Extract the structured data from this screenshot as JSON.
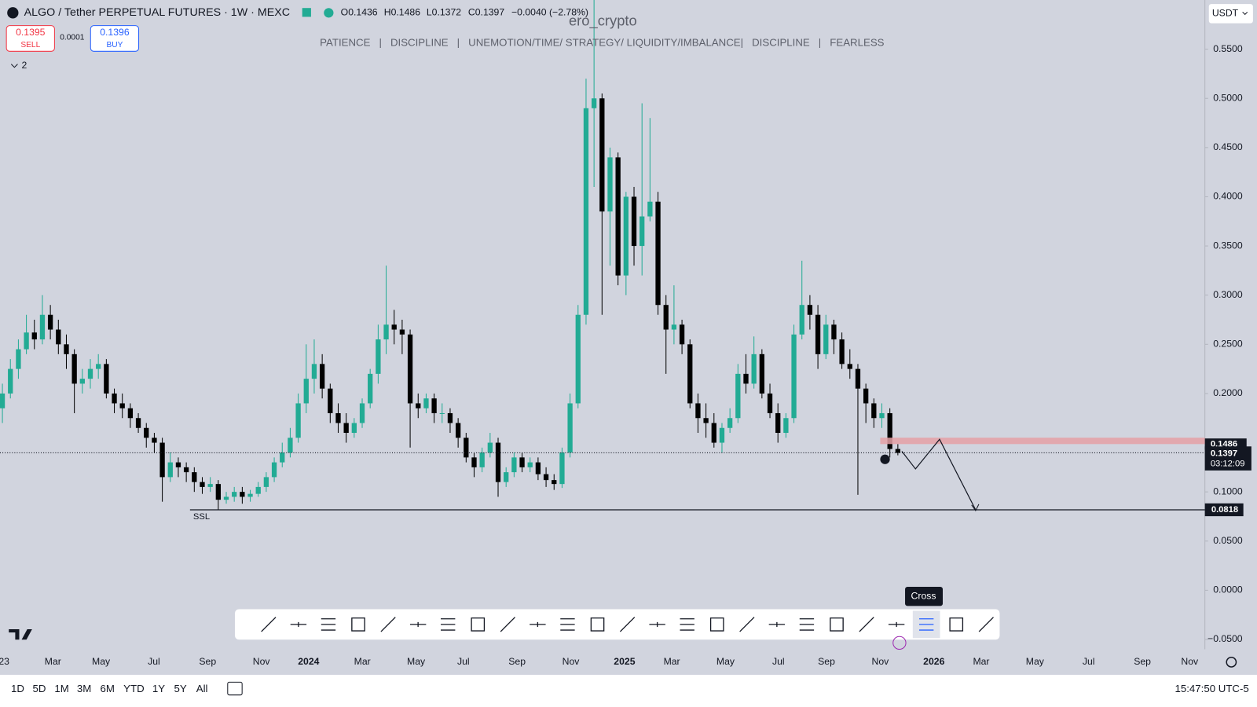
{
  "header": {
    "symbol": "ALGO / Tether PERPETUAL FUTURES · 1W · MEXC",
    "open": "O0.1436",
    "high": "H0.1486",
    "low": "L0.1372",
    "close": "C0.1397",
    "change": "−0.0040 (−2.78%)",
    "sell_price": "0.1395",
    "sell": "SELL",
    "spread": "0.0001",
    "buy_price": "0.1396",
    "buy": "BUY",
    "indicators": "2",
    "watermark": "ero_crypto",
    "motto": "PATIENCE   |   DISCIPLINE   |   UNEMOTION/TIME/ STRATEGY/ LIQUIDITY/IMBALANCE|   DISCIPLINE   |   FEARLESS",
    "currency": "USDT"
  },
  "chart_data": {
    "type": "candlestick",
    "open": [
      0.185,
      0.2,
      0.225,
      0.245,
      0.262,
      0.255,
      0.28,
      0.265,
      0.25,
      0.24,
      0.21,
      0.215,
      0.225,
      0.23,
      0.2,
      0.19,
      0.185,
      0.175,
      0.165,
      0.155,
      0.15,
      0.115,
      0.13,
      0.125,
      0.12,
      0.11,
      0.105,
      0.108,
      0.092,
      0.095,
      0.1,
      0.095,
      0.098,
      0.105,
      0.115,
      0.13,
      0.14,
      0.155,
      0.19,
      0.215,
      0.23,
      0.205,
      0.18,
      0.17,
      0.16,
      0.17,
      0.19,
      0.22,
      0.255,
      0.27,
      0.265,
      0.26,
      0.19,
      0.185,
      0.195,
      0.18,
      0.18,
      0.17,
      0.155,
      0.135,
      0.125,
      0.14,
      0.15,
      0.11,
      0.12,
      0.135,
      0.125,
      0.13,
      0.118,
      0.112,
      0.108,
      0.14,
      0.19,
      0.28,
      0.49,
      0.5,
      0.385,
      0.44,
      0.32,
      0.4,
      0.35,
      0.38,
      0.395,
      0.29,
      0.265,
      0.27,
      0.25,
      0.19,
      0.175,
      0.17,
      0.15,
      0.165,
      0.175,
      0.22,
      0.21,
      0.24,
      0.2,
      0.18,
      0.16,
      0.175,
      0.26,
      0.29,
      0.28,
      0.24,
      0.27,
      0.255,
      0.23,
      0.225,
      0.205,
      0.19,
      0.175,
      0.18,
      0.1436
    ],
    "high": [
      0.21,
      0.235,
      0.255,
      0.28,
      0.275,
      0.3,
      0.29,
      0.275,
      0.26,
      0.245,
      0.225,
      0.235,
      0.24,
      0.235,
      0.205,
      0.2,
      0.19,
      0.18,
      0.17,
      0.16,
      0.155,
      0.14,
      0.135,
      0.13,
      0.125,
      0.115,
      0.115,
      0.112,
      0.1,
      0.105,
      0.105,
      0.102,
      0.11,
      0.12,
      0.135,
      0.15,
      0.165,
      0.2,
      0.25,
      0.255,
      0.24,
      0.21,
      0.19,
      0.18,
      0.175,
      0.195,
      0.225,
      0.27,
      0.33,
      0.285,
      0.275,
      0.265,
      0.2,
      0.2,
      0.2,
      0.19,
      0.185,
      0.175,
      0.16,
      0.14,
      0.145,
      0.16,
      0.155,
      0.125,
      0.14,
      0.14,
      0.135,
      0.135,
      0.125,
      0.118,
      0.145,
      0.2,
      0.29,
      0.52,
      0.6,
      0.505,
      0.45,
      0.445,
      0.405,
      0.41,
      0.495,
      0.48,
      0.405,
      0.3,
      0.31,
      0.275,
      0.255,
      0.2,
      0.19,
      0.18,
      0.17,
      0.185,
      0.23,
      0.24,
      0.258,
      0.245,
      0.21,
      0.19,
      0.18,
      0.27,
      0.335,
      0.3,
      0.29,
      0.28,
      0.275,
      0.262,
      0.245,
      0.23,
      0.21,
      0.195,
      0.19,
      0.185,
      0.1486
    ],
    "low": [
      0.17,
      0.195,
      0.215,
      0.24,
      0.245,
      0.25,
      0.255,
      0.24,
      0.225,
      0.18,
      0.2,
      0.205,
      0.215,
      0.195,
      0.18,
      0.175,
      0.165,
      0.16,
      0.145,
      0.14,
      0.09,
      0.11,
      0.115,
      0.11,
      0.1,
      0.098,
      0.1,
      0.0818,
      0.088,
      0.09,
      0.088,
      0.09,
      0.095,
      0.1,
      0.11,
      0.125,
      0.135,
      0.15,
      0.18,
      0.2,
      0.195,
      0.17,
      0.16,
      0.15,
      0.155,
      0.165,
      0.185,
      0.21,
      0.24,
      0.25,
      0.24,
      0.145,
      0.175,
      0.18,
      0.17,
      0.17,
      0.16,
      0.145,
      0.13,
      0.115,
      0.12,
      0.135,
      0.095,
      0.105,
      0.115,
      0.12,
      0.12,
      0.112,
      0.105,
      0.102,
      0.104,
      0.135,
      0.185,
      0.27,
      0.41,
      0.28,
      0.33,
      0.31,
      0.3,
      0.33,
      0.32,
      0.375,
      0.28,
      0.22,
      0.25,
      0.24,
      0.185,
      0.16,
      0.155,
      0.145,
      0.14,
      0.16,
      0.17,
      0.2,
      0.205,
      0.195,
      0.175,
      0.15,
      0.155,
      0.17,
      0.255,
      0.265,
      0.225,
      0.235,
      0.24,
      0.225,
      0.215,
      0.097,
      0.17,
      0.165,
      0.165,
      0.135,
      0.1372
    ],
    "close": [
      0.2,
      0.225,
      0.245,
      0.262,
      0.255,
      0.28,
      0.265,
      0.25,
      0.24,
      0.21,
      0.215,
      0.225,
      0.23,
      0.2,
      0.19,
      0.185,
      0.175,
      0.165,
      0.155,
      0.15,
      0.115,
      0.13,
      0.125,
      0.12,
      0.11,
      0.105,
      0.108,
      0.092,
      0.095,
      0.1,
      0.095,
      0.098,
      0.105,
      0.115,
      0.13,
      0.14,
      0.155,
      0.19,
      0.215,
      0.23,
      0.205,
      0.18,
      0.17,
      0.16,
      0.17,
      0.19,
      0.22,
      0.255,
      0.27,
      0.265,
      0.26,
      0.19,
      0.185,
      0.195,
      0.18,
      0.18,
      0.17,
      0.155,
      0.135,
      0.125,
      0.14,
      0.15,
      0.11,
      0.12,
      0.135,
      0.125,
      0.13,
      0.118,
      0.112,
      0.108,
      0.14,
      0.19,
      0.28,
      0.49,
      0.5,
      0.385,
      0.44,
      0.32,
      0.4,
      0.35,
      0.38,
      0.395,
      0.29,
      0.265,
      0.27,
      0.25,
      0.19,
      0.175,
      0.17,
      0.15,
      0.165,
      0.175,
      0.22,
      0.21,
      0.24,
      0.2,
      0.18,
      0.16,
      0.175,
      0.26,
      0.29,
      0.28,
      0.24,
      0.27,
      0.255,
      0.23,
      0.225,
      0.205,
      0.19,
      0.175,
      0.18,
      0.1436,
      0.1397
    ],
    "up_color": "#22ab94",
    "down_color": "#000000",
    "ylim": [
      -0.06,
      0.6
    ],
    "yticks": [
      {
        "value": 0.55,
        "label": "0.5500"
      },
      {
        "value": 0.5,
        "label": "0.5000"
      },
      {
        "value": 0.45,
        "label": "0.4500"
      },
      {
        "value": 0.4,
        "label": "0.4000"
      },
      {
        "value": 0.35,
        "label": "0.3500"
      },
      {
        "value": 0.3,
        "label": "0.3000"
      },
      {
        "value": 0.25,
        "label": "0.2500"
      },
      {
        "value": 0.2,
        "label": "0.2000"
      },
      {
        "value": 0.15,
        "label": "0.1500"
      },
      {
        "value": 0.1,
        "label": "0.1000"
      },
      {
        "value": 0.05,
        "label": "0.0500"
      },
      {
        "value": 0,
        "label": "0.0000"
      },
      {
        "value": -0.05,
        "label": "−0.0500"
      }
    ],
    "xticks": [
      "23",
      "Mar",
      "May",
      "Jul",
      "Sep",
      "Nov",
      "2024",
      "Mar",
      "May",
      "Jul",
      "Sep",
      "Nov",
      "2025",
      "Mar",
      "May",
      "Jul",
      "Sep",
      "Nov",
      "2026",
      "Mar",
      "May",
      "Jul",
      "Sep",
      "Nov"
    ],
    "zone_level": {
      "value": 0.1486,
      "label": "0.1486"
    },
    "last_price": {
      "value": 0.1397,
      "label": "0.1397"
    },
    "countdown": "03:12:09",
    "ssl_level": {
      "value": 0.0818,
      "label": "0.0818"
    },
    "ssl_text": "SSL"
  },
  "toolbar": {
    "tooltip": "Cross"
  },
  "bottom_bar": {
    "ranges": [
      "1D",
      "5D",
      "1M",
      "3M",
      "6M",
      "YTD",
      "1Y",
      "5Y",
      "All"
    ],
    "clock": "15:47:50 UTC-5"
  }
}
